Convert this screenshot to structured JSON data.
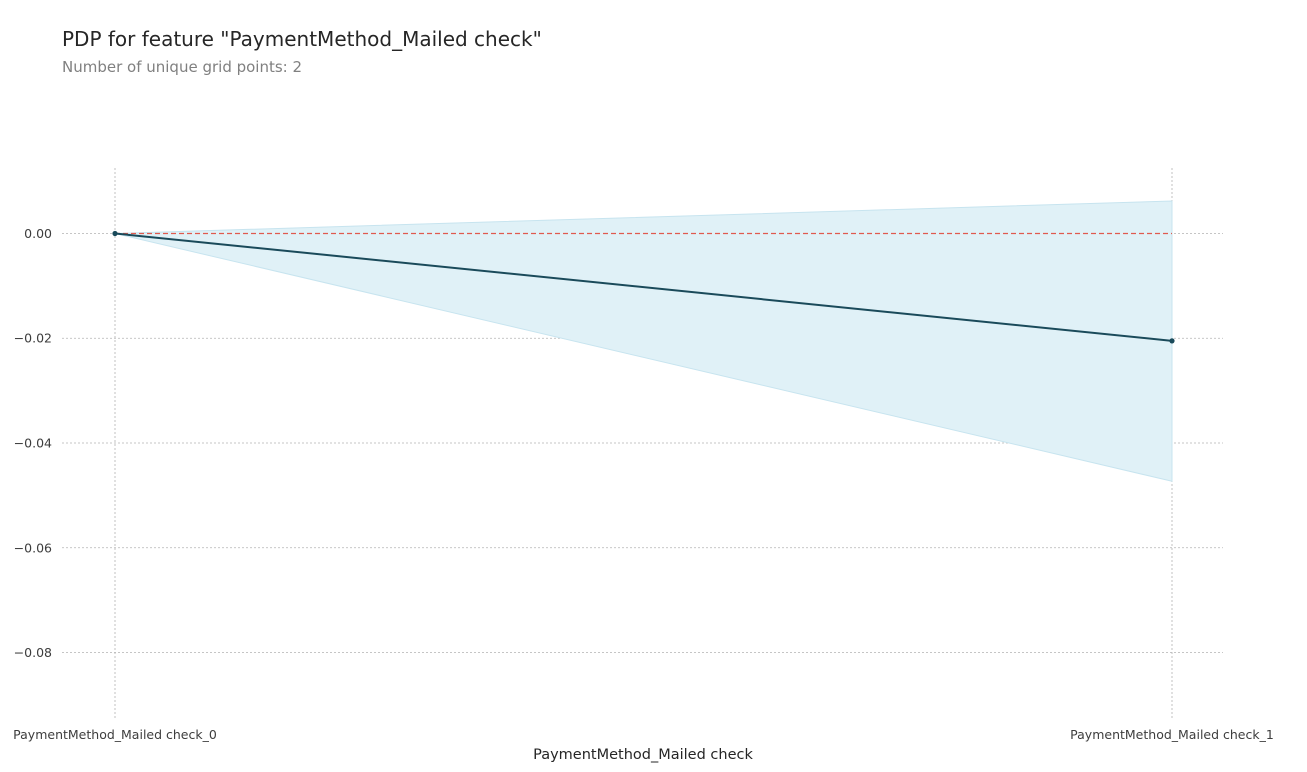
{
  "chart_data": {
    "type": "line",
    "title": "PDP for feature \"PaymentMethod_Mailed check\"",
    "subtitle": "Number of unique grid points: 2",
    "xlabel": "PaymentMethod_Mailed check",
    "ylabel": "",
    "categories": [
      "PaymentMethod_Mailed check_0",
      "PaymentMethod_Mailed check_1"
    ],
    "series": [
      {
        "values": [
          0.0,
          -0.0205
        ],
        "upper": [
          0.0,
          0.0062
        ],
        "lower": [
          0.0,
          -0.0473
        ]
      }
    ],
    "reference_line": {
      "y": 0.0,
      "style": "dashed"
    },
    "ylim": [
      -0.0925,
      0.0125
    ],
    "yticks": [
      0.0,
      -0.02,
      -0.04,
      -0.06,
      -0.08
    ],
    "ytick_labels": [
      "0.00",
      "−0.02",
      "−0.04",
      "−0.06",
      "−0.08"
    ],
    "grid": true,
    "colors": {
      "line": "#1a4a5a",
      "band_fill": "#e0f1f7",
      "band_edge": "#c7e4ef",
      "reference": "#e05a4e",
      "grid": "#b3b3b3"
    }
  }
}
